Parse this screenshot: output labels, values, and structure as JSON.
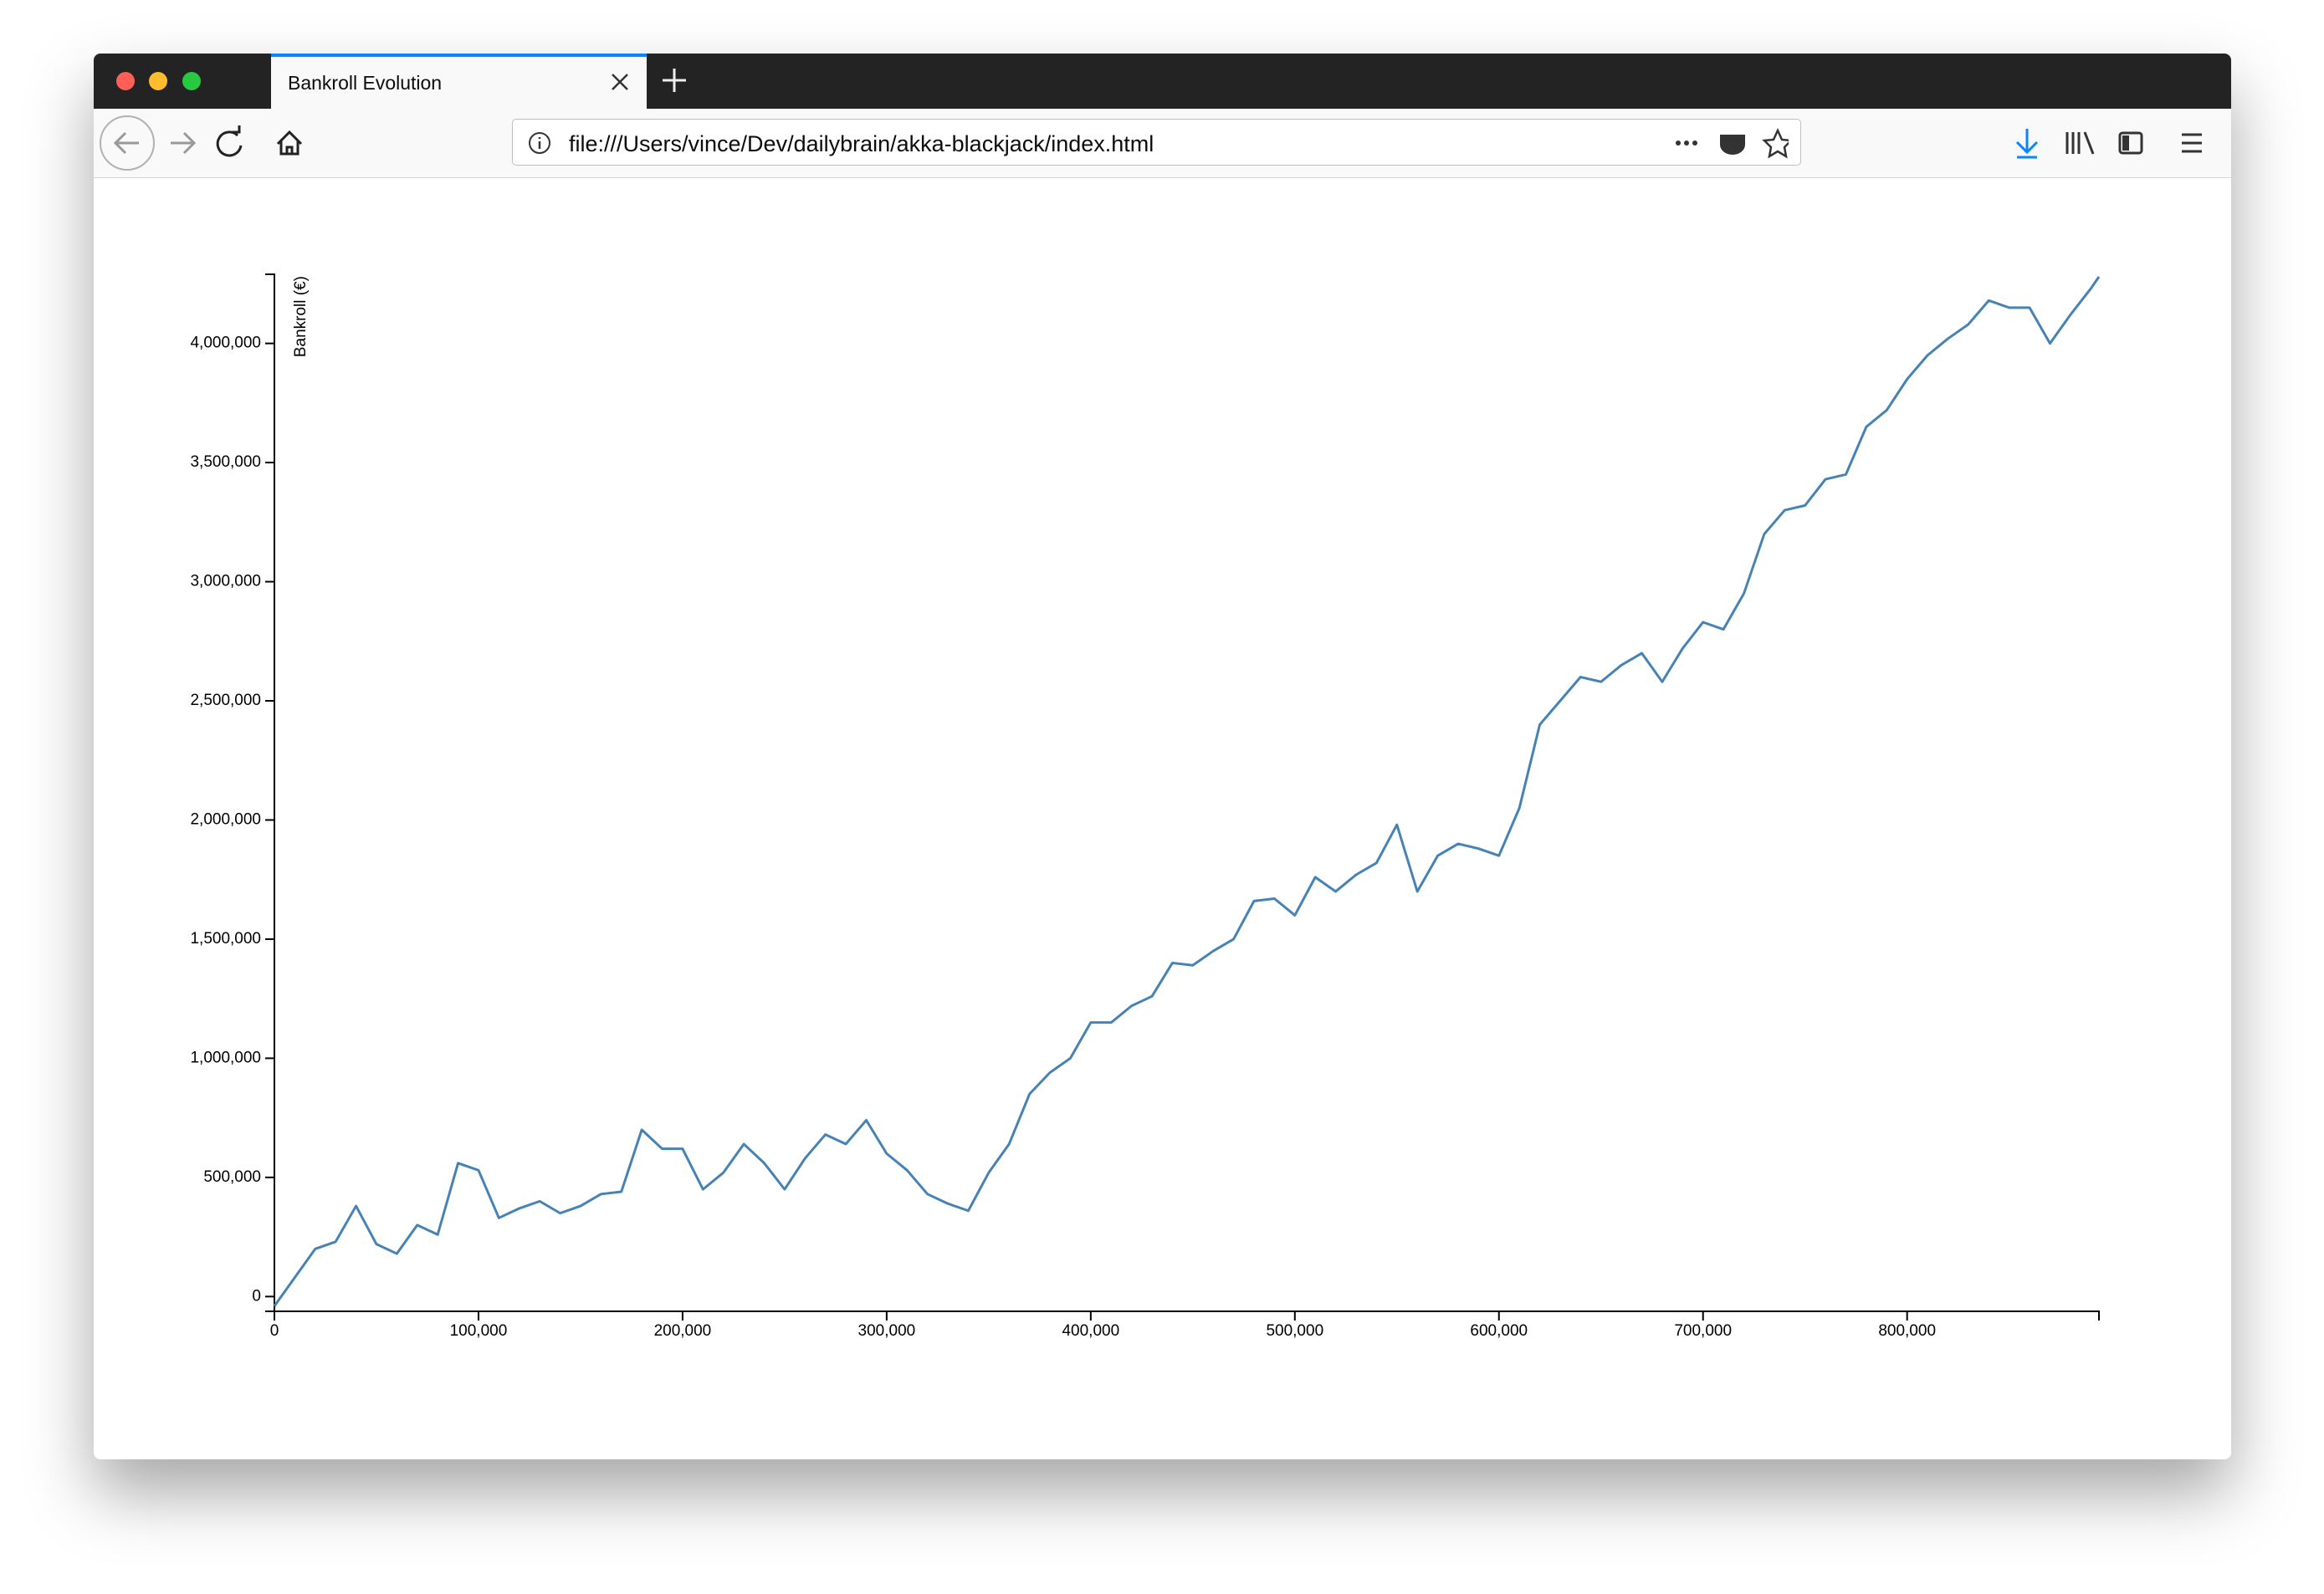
{
  "browser": {
    "tab_title": "Bankroll Evolution",
    "url": "file:///Users/vince/Dev/dailybrain/akka-blackjack/index.html"
  },
  "chart_data": {
    "type": "line",
    "y_label": "Bankroll (€)",
    "color": "#4682b4",
    "x": [
      0,
      10000,
      20000,
      30000,
      40000,
      50000,
      60000,
      70000,
      80000,
      90000,
      100000,
      110000,
      120000,
      130000,
      140000,
      150000,
      160000,
      170000,
      180000,
      190000,
      200000,
      210000,
      220000,
      230000,
      240000,
      250000,
      260000,
      270000,
      280000,
      290000,
      300000,
      310000,
      320000,
      330000,
      340000,
      350000,
      360000,
      370000,
      380000,
      390000,
      400000,
      410000,
      420000,
      430000,
      440000,
      450000,
      460000,
      470000,
      480000,
      490000,
      500000,
      510000,
      520000,
      530000,
      540000,
      550000,
      560000,
      570000,
      580000,
      590000,
      600000,
      610000,
      620000,
      630000,
      640000,
      650000,
      660000,
      670000,
      680000,
      690000,
      700000,
      710000,
      720000,
      730000,
      740000,
      750000,
      760000,
      770000,
      780000,
      790000,
      800000,
      810000,
      820000,
      830000,
      840000,
      850000,
      860000,
      870000,
      880000,
      890000,
      894000
    ],
    "values": [
      -40000,
      80000,
      200000,
      230000,
      380000,
      220000,
      180000,
      300000,
      260000,
      560000,
      530000,
      330000,
      370000,
      400000,
      350000,
      380000,
      430000,
      440000,
      700000,
      620000,
      620000,
      450000,
      520000,
      640000,
      560000,
      450000,
      580000,
      680000,
      640000,
      740000,
      600000,
      530000,
      430000,
      390000,
      360000,
      520000,
      640000,
      850000,
      940000,
      1000000,
      1150000,
      1150000,
      1220000,
      1260000,
      1400000,
      1390000,
      1450000,
      1500000,
      1660000,
      1670000,
      1600000,
      1760000,
      1700000,
      1770000,
      1820000,
      1980000,
      1700000,
      1850000,
      1900000,
      1880000,
      1850000,
      2050000,
      2400000,
      2500000,
      2600000,
      2580000,
      2650000,
      2700000,
      2580000,
      2720000,
      2830000,
      2800000,
      2950000,
      3200000,
      3300000,
      3320000,
      3430000,
      3450000,
      3650000,
      3720000,
      3850000,
      3950000,
      4020000,
      4080000,
      4180000,
      4150000,
      4150000,
      4000000,
      4120000,
      4230000,
      4280000
    ],
    "xlim": [
      0,
      894000
    ],
    "ylim": [
      -62000,
      4290000
    ],
    "xticks": [
      0,
      {
        "value": 100000,
        "label": "100,000"
      },
      {
        "value": 200000,
        "label": "200,000"
      },
      {
        "value": 300000,
        "label": "300,000"
      },
      {
        "value": 400000,
        "label": "400,000"
      },
      {
        "value": 500000,
        "label": "500,000"
      },
      {
        "value": 600000,
        "label": "600,000"
      },
      {
        "value": 700000,
        "label": "700,000"
      },
      {
        "value": 800000,
        "label": "800,000"
      }
    ],
    "yticks": [
      0,
      {
        "value": 500000,
        "label": "500,000"
      },
      {
        "value": 1000000,
        "label": "1,000,000"
      },
      {
        "value": 1500000,
        "label": "1,500,000"
      },
      {
        "value": 2000000,
        "label": "2,000,000"
      },
      {
        "value": 2500000,
        "label": "2,500,000"
      },
      {
        "value": 3000000,
        "label": "3,000,000"
      },
      {
        "value": 3500000,
        "label": "3,500,000"
      },
      {
        "value": 4000000,
        "label": "4,000,000"
      }
    ]
  }
}
